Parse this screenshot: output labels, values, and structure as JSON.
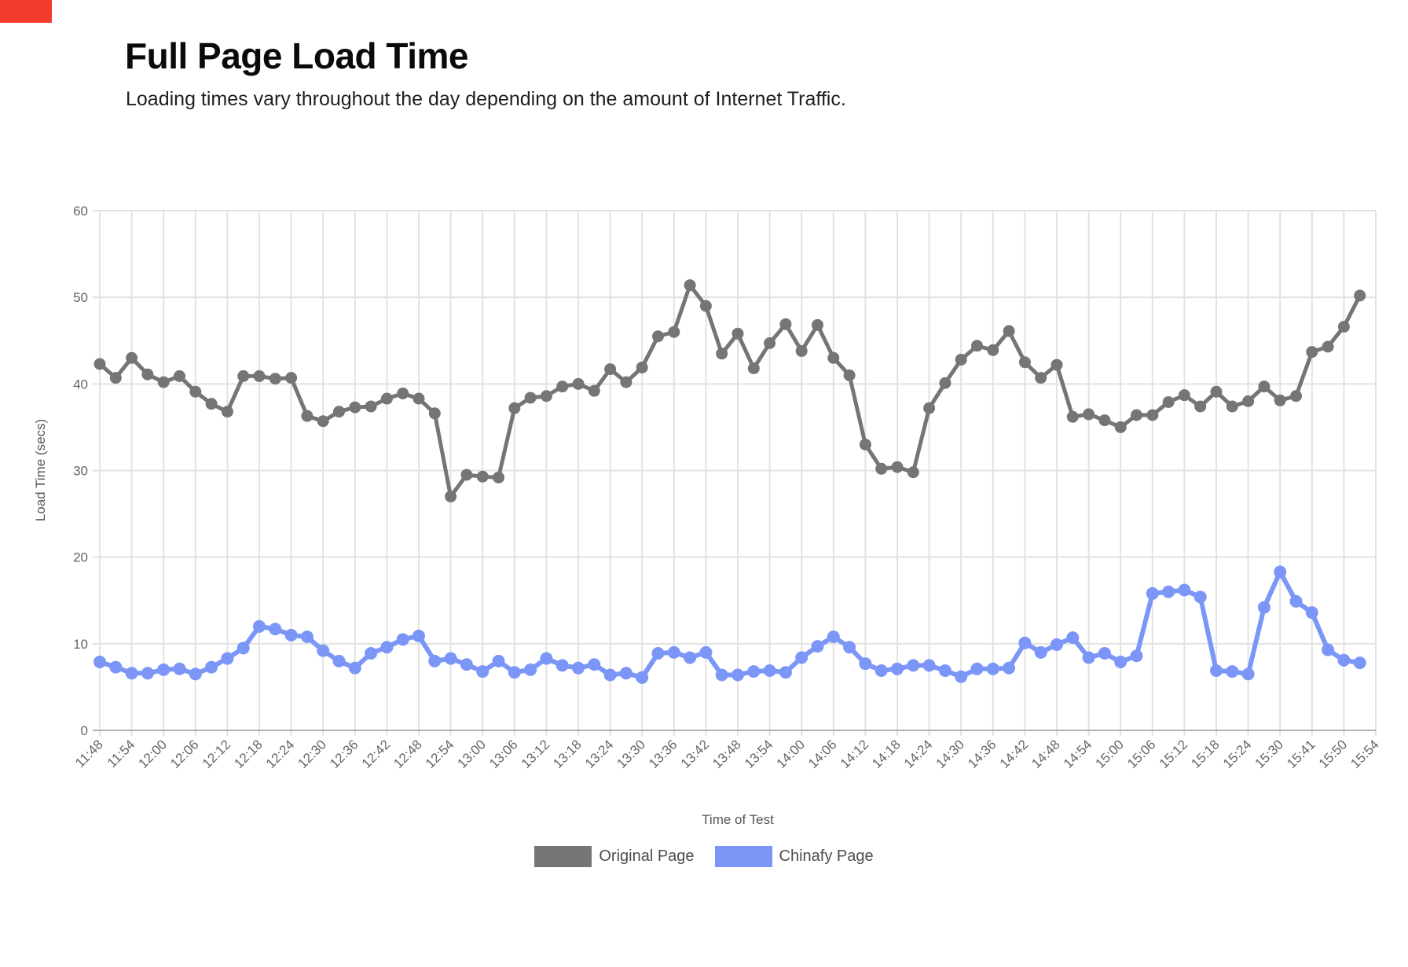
{
  "page": {
    "corner_marker_color": "#f23b2c"
  },
  "header": {
    "title": "Full Page Load Time",
    "subtitle": "Loading times vary throughout the day depending on the amount of Internet Traffic."
  },
  "chart_data": {
    "type": "line",
    "title": "Full Page Load Time",
    "xlabel": "Time of Test",
    "ylabel": "Load Time (secs)",
    "ylim": [
      0,
      60
    ],
    "yticks": [
      0,
      10,
      20,
      30,
      40,
      50,
      60
    ],
    "grid": true,
    "legend_position": "bottom",
    "points_per_label_interval": 2,
    "categories": [
      "11:48",
      "11:54",
      "12:00",
      "12:06",
      "12:12",
      "12:18",
      "12:24",
      "12:30",
      "12:36",
      "12:42",
      "12:48",
      "12:54",
      "13:00",
      "13:06",
      "13:12",
      "13:18",
      "13:24",
      "13:30",
      "13:36",
      "13:42",
      "13:48",
      "13:54",
      "14:00",
      "14:06",
      "14:12",
      "14:18",
      "14:24",
      "14:30",
      "14:36",
      "14:42",
      "14:48",
      "14:54",
      "15:00",
      "15:06",
      "15:12",
      "15:18",
      "15:24",
      "15:30",
      "15:41",
      "15:50",
      "15:54"
    ],
    "series": [
      {
        "name": "Original Page",
        "color": "#757575",
        "values": [
          42.3,
          40.7,
          43,
          41.1,
          40.2,
          40.9,
          39.1,
          37.7,
          36.8,
          40.9,
          40.9,
          40.6,
          40.7,
          36.3,
          35.7,
          36.8,
          37.3,
          37.4,
          38.3,
          38.9,
          38.3,
          36.6,
          27,
          29.5,
          29.3,
          29.2,
          37.2,
          38.4,
          38.6,
          39.7,
          40,
          39.2,
          41.7,
          40.2,
          41.9,
          45.5,
          46,
          51.4,
          49,
          43.5,
          45.8,
          41.8,
          44.7,
          46.9,
          43.8,
          46.8,
          43,
          41,
          33,
          30.2,
          30.4,
          29.8,
          37.2,
          40.1,
          42.8,
          44.4,
          43.9,
          46.1,
          42.5,
          40.7,
          42.2,
          36.2,
          36.5,
          35.8,
          35,
          36.4,
          36.4,
          37.9,
          38.7,
          37.4,
          39.1,
          37.4,
          38,
          39.7,
          38.1,
          38.6,
          43.7,
          44.3,
          46.6,
          50.2
        ]
      },
      {
        "name": "Chinafy Page",
        "color": "#7b96f7",
        "values": [
          7.9,
          7.3,
          6.6,
          6.6,
          7,
          7.1,
          6.5,
          7.3,
          8.3,
          9.5,
          12,
          11.7,
          11,
          10.8,
          9.2,
          8,
          7.2,
          8.9,
          9.6,
          10.5,
          10.9,
          8,
          8.3,
          7.6,
          6.8,
          8,
          6.7,
          7,
          8.3,
          7.5,
          7.2,
          7.6,
          6.4,
          6.6,
          6.1,
          8.9,
          9,
          8.4,
          9,
          6.4,
          6.4,
          6.8,
          6.9,
          6.7,
          8.4,
          9.7,
          10.8,
          9.6,
          7.7,
          6.9,
          7.1,
          7.5,
          7.5,
          6.9,
          6.2,
          7.1,
          7.1,
          7.2,
          10.1,
          9,
          9.9,
          10.7,
          8.4,
          8.9,
          7.9,
          8.6,
          15.8,
          16,
          16.2,
          15.4,
          6.9,
          6.8,
          6.5,
          14.2,
          18.3,
          14.9,
          13.6,
          9.3,
          8.1,
          7.8
        ]
      }
    ],
    "styles": {
      "gridline_color": "#e2e2e2",
      "baseline_color": "#b3b3b3",
      "tick_label_color": "#666666"
    }
  }
}
